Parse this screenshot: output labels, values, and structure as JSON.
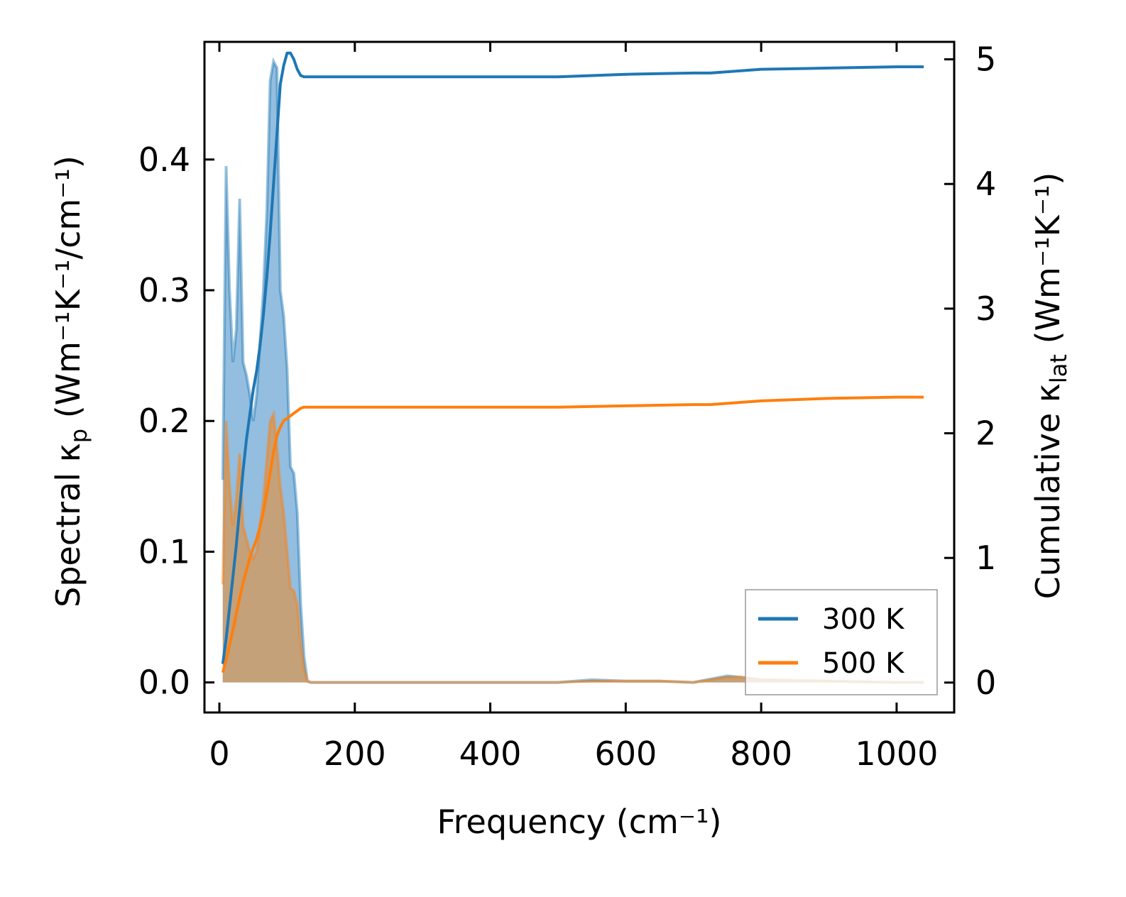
{
  "chart_data": {
    "type": "line",
    "xlabel": "Frequency (cm⁻¹)",
    "ylabel_left": {
      "base": "Spectral κ",
      "sub": "p",
      "unit": " (Wm⁻¹K⁻¹/cm⁻¹)"
    },
    "ylabel_right": {
      "base": "Cumulative κ",
      "sub": "lat",
      "unit": " (Wm⁻¹K⁻¹)"
    },
    "xlim": [
      -22,
      1085
    ],
    "ylim_left": [
      -0.023,
      0.49
    ],
    "ylim_right": [
      -0.24,
      5.14
    ],
    "x_ticks": [
      0,
      200,
      400,
      600,
      800,
      1000
    ],
    "y_ticks_left": [
      0.0,
      0.1,
      0.2,
      0.3,
      0.4
    ],
    "y_ticks_right": [
      0,
      1,
      2,
      3,
      4,
      5
    ],
    "legend_position": "lower-right",
    "colors": {
      "s300": "#1f77b4",
      "s500": "#ff7f0e",
      "s300_fill": "#8dbbdd",
      "s500_fill": "#c69f73"
    },
    "series": [
      {
        "name": "300 K",
        "color": "#1f77b4",
        "spectral": {
          "x": [
            5,
            10,
            15,
            20,
            25,
            30,
            35,
            40,
            45,
            50,
            55,
            60,
            65,
            70,
            75,
            80,
            85,
            90,
            95,
            100,
            105,
            110,
            115,
            120,
            125,
            130,
            135,
            140,
            150,
            200,
            400,
            500,
            550,
            600,
            650,
            700,
            750,
            770,
            800,
            900,
            1000,
            1040
          ],
          "y": [
            0.155,
            0.395,
            0.3,
            0.245,
            0.27,
            0.37,
            0.245,
            0.235,
            0.22,
            0.2,
            0.22,
            0.26,
            0.3,
            0.36,
            0.46,
            0.475,
            0.47,
            0.3,
            0.28,
            0.24,
            0.165,
            0.16,
            0.13,
            0.06,
            0.02,
            0.001,
            0.0,
            0.0,
            0.0,
            0.0,
            0.0,
            0.0,
            0.002,
            0.001,
            0.001,
            0.0,
            0.005,
            0.004,
            0.002,
            0.001,
            0.0,
            0.0
          ]
        },
        "cumulative": {
          "x": [
            5,
            10,
            15,
            20,
            25,
            30,
            35,
            40,
            45,
            50,
            55,
            60,
            65,
            70,
            75,
            80,
            85,
            90,
            95,
            100,
            105,
            110,
            115,
            120,
            125,
            130,
            200,
            300,
            400,
            500,
            600,
            700,
            725,
            800,
            900,
            1000,
            1040
          ],
          "y": [
            0.15,
            0.35,
            0.6,
            0.85,
            1.1,
            1.4,
            1.7,
            1.95,
            2.15,
            2.35,
            2.5,
            2.7,
            2.95,
            3.25,
            3.6,
            4.0,
            4.4,
            4.8,
            4.95,
            5.05,
            5.05,
            5.0,
            4.92,
            4.87,
            4.86,
            4.86,
            4.86,
            4.86,
            4.86,
            4.86,
            4.88,
            4.89,
            4.89,
            4.92,
            4.93,
            4.94,
            4.94
          ]
        }
      },
      {
        "name": "500 K",
        "color": "#ff7f0e",
        "spectral": {
          "x": [
            5,
            10,
            15,
            20,
            25,
            30,
            35,
            40,
            45,
            50,
            55,
            60,
            65,
            70,
            75,
            80,
            85,
            90,
            95,
            100,
            105,
            110,
            115,
            120,
            125,
            130,
            135,
            140,
            150,
            200,
            400,
            500,
            550,
            600,
            650,
            700,
            750,
            770,
            800,
            900,
            1000,
            1040
          ],
          "y": [
            0.075,
            0.2,
            0.15,
            0.12,
            0.14,
            0.175,
            0.12,
            0.11,
            0.1,
            0.095,
            0.1,
            0.12,
            0.14,
            0.17,
            0.2,
            0.205,
            0.18,
            0.15,
            0.13,
            0.1,
            0.072,
            0.07,
            0.06,
            0.03,
            0.01,
            0.001,
            0.0,
            0.0,
            0.0,
            0.0,
            0.0,
            0.0,
            0.001,
            0.001,
            0.001,
            0.0,
            0.004,
            0.004,
            0.002,
            0.001,
            0.0,
            0.0
          ]
        },
        "cumulative": {
          "x": [
            5,
            10,
            15,
            20,
            25,
            30,
            35,
            40,
            45,
            50,
            55,
            60,
            65,
            70,
            75,
            80,
            85,
            90,
            95,
            100,
            105,
            110,
            115,
            120,
            125,
            130,
            200,
            300,
            400,
            500,
            600,
            700,
            725,
            800,
            900,
            1000,
            1040
          ],
          "y": [
            0.08,
            0.18,
            0.3,
            0.42,
            0.55,
            0.68,
            0.8,
            0.9,
            1.0,
            1.08,
            1.15,
            1.25,
            1.37,
            1.52,
            1.68,
            1.85,
            1.98,
            2.05,
            2.1,
            2.12,
            2.14,
            2.16,
            2.18,
            2.2,
            2.21,
            2.21,
            2.21,
            2.21,
            2.21,
            2.21,
            2.22,
            2.23,
            2.23,
            2.26,
            2.28,
            2.29,
            2.29
          ]
        }
      }
    ]
  }
}
